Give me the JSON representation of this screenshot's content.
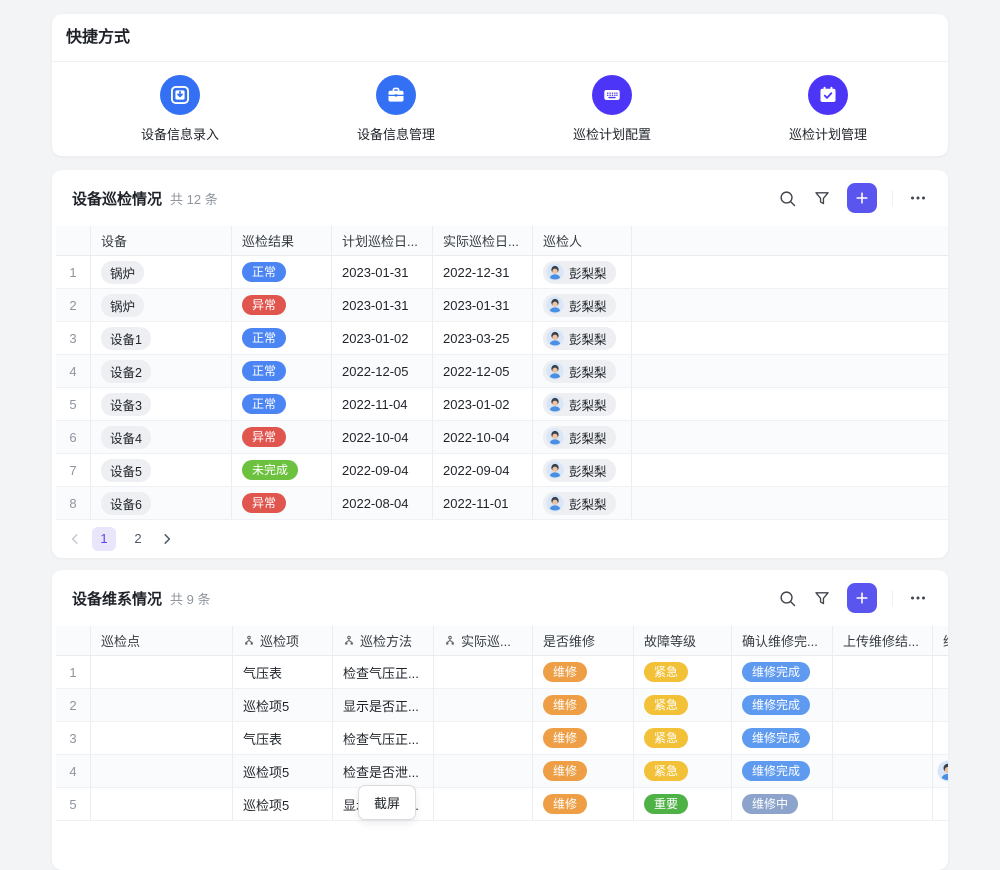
{
  "shortcuts": {
    "title": "快捷方式",
    "items": [
      {
        "name": "device-info-entry",
        "label": "设备信息录入",
        "icon": "tablet-download-icon",
        "color": "#3370f4"
      },
      {
        "name": "device-info-manage",
        "label": "设备信息管理",
        "icon": "briefcase-icon",
        "color": "#3370f4"
      },
      {
        "name": "inspection-plan-config",
        "label": "巡检计划配置",
        "icon": "keyboard-icon",
        "color": "#4c35f7"
      },
      {
        "name": "inspection-plan-manage",
        "label": "巡检计划管理",
        "icon": "calendar-check-icon",
        "color": "#4c35f7"
      }
    ]
  },
  "inspection": {
    "title": "设备巡检情况",
    "count": "共 12 条",
    "columns": [
      "设备",
      "巡检结果",
      "计划巡检日...",
      "实际巡检日...",
      "巡检人"
    ],
    "rows": [
      {
        "num": "1",
        "device": "锅炉",
        "result": "正常",
        "planned": "2023-01-31",
        "actual": "2022-12-31",
        "inspector": "彭梨梨"
      },
      {
        "num": "2",
        "device": "锅炉",
        "result": "异常",
        "planned": "2023-01-31",
        "actual": "2023-01-31",
        "inspector": "彭梨梨"
      },
      {
        "num": "3",
        "device": "设备1",
        "result": "正常",
        "planned": "2023-01-02",
        "actual": "2023-03-25",
        "inspector": "彭梨梨"
      },
      {
        "num": "4",
        "device": "设备2",
        "result": "正常",
        "planned": "2022-12-05",
        "actual": "2022-12-05",
        "inspector": "彭梨梨"
      },
      {
        "num": "5",
        "device": "设备3",
        "result": "正常",
        "planned": "2022-11-04",
        "actual": "2023-01-02",
        "inspector": "彭梨梨"
      },
      {
        "num": "6",
        "device": "设备4",
        "result": "异常",
        "planned": "2022-10-04",
        "actual": "2022-10-04",
        "inspector": "彭梨梨"
      },
      {
        "num": "7",
        "device": "设备5",
        "result": "未完成",
        "planned": "2022-09-04",
        "actual": "2022-09-04",
        "inspector": "彭梨梨"
      },
      {
        "num": "8",
        "device": "设备6",
        "result": "异常",
        "planned": "2022-08-04",
        "actual": "2022-11-01",
        "inspector": "彭梨梨"
      }
    ],
    "pagination": {
      "pages": [
        "1",
        "2"
      ],
      "active": "1"
    }
  },
  "maintenance": {
    "title": "设备维系情况",
    "count": "共 9 条",
    "columns": [
      {
        "label": "巡检点",
        "lookup": false
      },
      {
        "label": "巡检项",
        "lookup": true
      },
      {
        "label": "巡检方法",
        "lookup": true
      },
      {
        "label": "实际巡...",
        "lookup": true
      },
      {
        "label": "是否维修",
        "lookup": false
      },
      {
        "label": "故障等级",
        "lookup": false
      },
      {
        "label": "确认维修完...",
        "lookup": false
      },
      {
        "label": "上传维修结...",
        "lookup": false
      },
      {
        "label": "维修人",
        "lookup": false
      }
    ],
    "rows": [
      {
        "num": "1",
        "point": "",
        "item": "气压表",
        "method": "检查气压正...",
        "actual": "",
        "repair": "维修",
        "level": "紧急",
        "confirm": "维修完成",
        "upload": "",
        "worker_avatar": false
      },
      {
        "num": "2",
        "point": "",
        "item": "巡检项5",
        "method": "显示是否正...",
        "actual": "",
        "repair": "维修",
        "level": "紧急",
        "confirm": "维修完成",
        "upload": "",
        "worker_avatar": false
      },
      {
        "num": "3",
        "point": "",
        "item": "气压表",
        "method": "检查气压正...",
        "actual": "",
        "repair": "维修",
        "level": "紧急",
        "confirm": "维修完成",
        "upload": "",
        "worker_avatar": false
      },
      {
        "num": "4",
        "point": "",
        "item": "巡检项5",
        "method": "检查是否泄...",
        "actual": "",
        "repair": "维修",
        "level": "紧急",
        "confirm": "维修完成",
        "upload": "",
        "worker_avatar": true
      },
      {
        "num": "5",
        "point": "",
        "item": "巡检项5",
        "method": "显示是否正...",
        "actual": "",
        "repair": "维修",
        "level": "重要",
        "confirm": "维修中",
        "upload": "",
        "worker_avatar": false
      }
    ]
  },
  "tooltip": {
    "text": "截屏"
  },
  "pill_colors": {
    "正常": "#4b84f3",
    "异常": "#e0564e",
    "未完成": "#6cc23e",
    "维修": "#ee9e44",
    "紧急": "#f3c138",
    "维修完成": "#5e9af0",
    "重要": "#4fb247",
    "维修中": "#8ca3cb"
  },
  "ui_colors": {
    "add_button": "#5b55f0",
    "icon_stroke": "#41464d",
    "page_active_bg": "#e9e6fb",
    "page_active_text": "#5746e5",
    "disabled_chevron": "#c5cad1",
    "enabled_chevron": "#4e5969"
  }
}
